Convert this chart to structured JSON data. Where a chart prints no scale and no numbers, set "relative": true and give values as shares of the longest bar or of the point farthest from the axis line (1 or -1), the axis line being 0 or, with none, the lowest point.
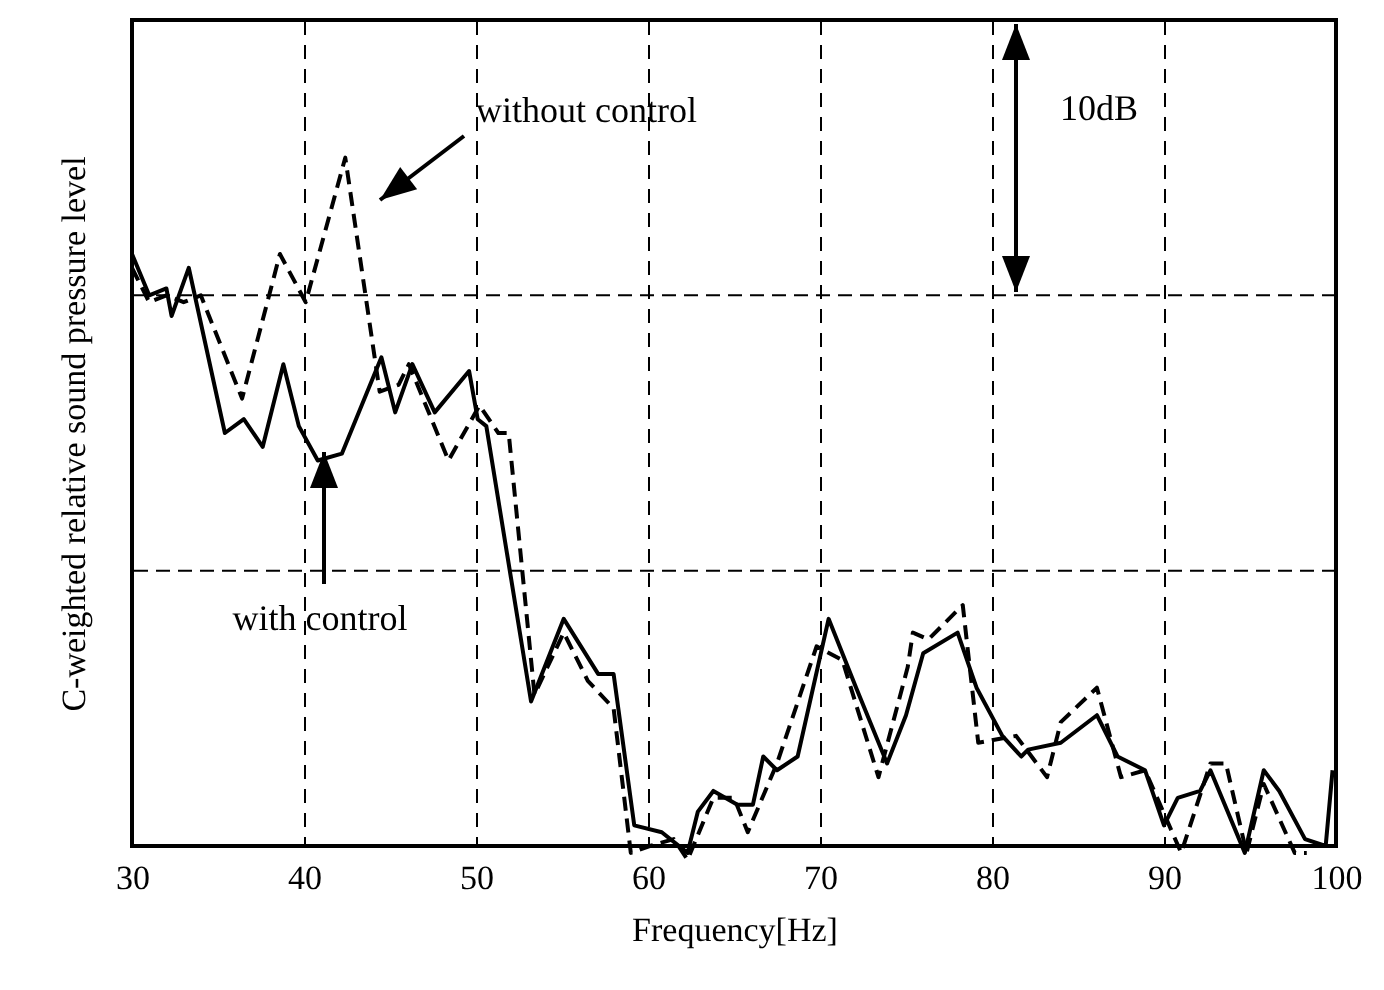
{
  "chart_data": {
    "type": "line",
    "relative": true,
    "xlabel": "Frequency[Hz]",
    "ylabel": "C-weighted relative sound pressure level",
    "xlim": [
      30,
      100
    ],
    "xticks": [
      30,
      40,
      50,
      60,
      70,
      80,
      90,
      100
    ],
    "grid": "x",
    "marker": "none",
    "series": [
      {
        "name": "with control",
        "color": "#000000",
        "line_style": "solid",
        "x": [
          30,
          31,
          32,
          32.3,
          33.3,
          35.4,
          36.5,
          37.6,
          38.8,
          39.7,
          40.8,
          42.2,
          44.5,
          45.3,
          46.3,
          47.6,
          49.6,
          50.1,
          50.6,
          53.2,
          55.1,
          57.1,
          58,
          59.2,
          60.8,
          62.3,
          62.9,
          63.8,
          65.2,
          66.1,
          66.7,
          67.5,
          68.7,
          70.5,
          72.1,
          73.9,
          75,
          76,
          78,
          79.1,
          80.6,
          81.7,
          82.1,
          84,
          86.1,
          87.3,
          88.9,
          90,
          90.8,
          92.1,
          92.7,
          94.7,
          95.8,
          96.7,
          98.2,
          99.4,
          99.8
        ],
        "values": [
          0.86,
          0.8,
          0.81,
          0.77,
          0.84,
          0.6,
          0.62,
          0.58,
          0.7,
          0.61,
          0.56,
          0.57,
          0.71,
          0.63,
          0.7,
          0.63,
          0.69,
          0.62,
          0.61,
          0.21,
          0.33,
          0.25,
          0.25,
          0.03,
          0.02,
          -0.01,
          0.05,
          0.08,
          0.06,
          0.06,
          0.13,
          0.11,
          0.13,
          0.33,
          0.23,
          0.12,
          0.19,
          0.28,
          0.31,
          0.23,
          0.16,
          0.13,
          0.14,
          0.15,
          0.19,
          0.13,
          0.11,
          0.03,
          0.07,
          0.08,
          0.11,
          -0.01,
          0.11,
          0.08,
          0.01,
          0,
          0.11
        ]
      },
      {
        "name": "without control",
        "color": "#000000",
        "line_style": "dashed",
        "x": [
          30,
          31,
          32,
          33,
          34,
          36.4,
          38.6,
          40.1,
          42.4,
          44.4,
          45.5,
          46.1,
          48.4,
          50.2,
          51.3,
          51.9,
          53.4,
          55.1,
          56.5,
          58,
          59,
          60.1,
          61.5,
          62.3,
          63.8,
          65,
          65.8,
          67.5,
          69.8,
          71.3,
          73.4,
          75.1,
          75.4,
          76.3,
          78.3,
          79.2,
          81.4,
          83.2,
          84,
          86.1,
          87.5,
          88.9,
          91,
          92.7,
          93.6,
          94.8,
          95.8,
          97.6,
          98.3
        ],
        "values": [
          0.84,
          0.79,
          0.8,
          0.79,
          0.8,
          0.65,
          0.86,
          0.79,
          1,
          0.66,
          0.67,
          0.7,
          0.56,
          0.64,
          0.6,
          0.6,
          0.22,
          0.31,
          0.24,
          0.2,
          -0.01,
          0,
          0.01,
          -0.02,
          0.07,
          0.07,
          0.02,
          0.12,
          0.29,
          0.27,
          0.1,
          0.26,
          0.31,
          0.3,
          0.35,
          0.15,
          0.16,
          0.1,
          0.18,
          0.23,
          0.1,
          0.11,
          -0.01,
          0.12,
          0.12,
          -0.01,
          0.09,
          -0.01,
          -0.01
        ]
      }
    ],
    "ref_lines": [
      {
        "axis": "y",
        "value": 0.4,
        "color": "#000000",
        "line_style": "dashed"
      },
      {
        "axis": "y",
        "value": 0.8,
        "color": "#000000",
        "line_style": "dashed"
      }
    ],
    "annotations": [
      "10dB"
    ]
  }
}
